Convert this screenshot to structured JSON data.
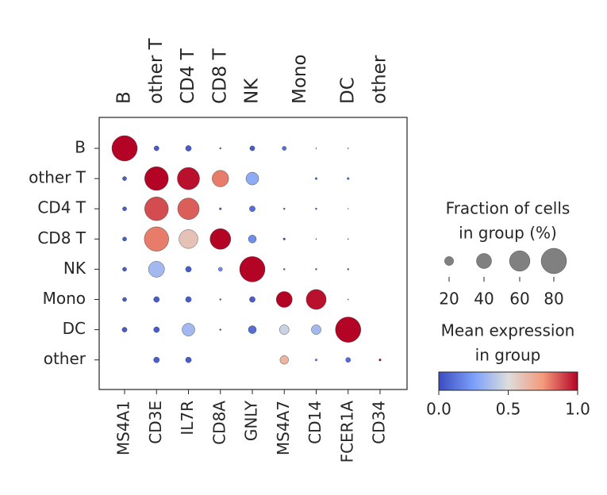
{
  "chart_data": {
    "type": "dotplot",
    "groups": [
      "B",
      "other T",
      "CD4 T",
      "CD8 T",
      "NK",
      "Mono",
      "DC",
      "other"
    ],
    "genes": [
      "MS4A1",
      "CD3E",
      "IL7R",
      "CD8A",
      "GNLY",
      "MS4A7",
      "CD14",
      "FCER1A",
      "CD34"
    ],
    "var_group_labels": [
      "B",
      "other T",
      "CD4 T",
      "CD8 T",
      "NK",
      "Mono",
      "DC",
      "other"
    ],
    "var_group_positions": [
      [
        0,
        0
      ],
      [
        1,
        1
      ],
      [
        2,
        2
      ],
      [
        3,
        3
      ],
      [
        4,
        4
      ],
      [
        5,
        6
      ],
      [
        7,
        7
      ],
      [
        8,
        8
      ]
    ],
    "fraction": [
      [
        80,
        9,
        11,
        2,
        9,
        7,
        1,
        1,
        null
      ],
      [
        7,
        73,
        67,
        45,
        32,
        null,
        3,
        3,
        null
      ],
      [
        7,
        73,
        64,
        3,
        11,
        2,
        2,
        1,
        null
      ],
      [
        7,
        76,
        54,
        61,
        17,
        3,
        1,
        1,
        null
      ],
      [
        7,
        43,
        11,
        7,
        80,
        2,
        2,
        2,
        null
      ],
      [
        7,
        11,
        11,
        2,
        11,
        43,
        58,
        1,
        null
      ],
      [
        9,
        11,
        32,
        2,
        17,
        22,
        22,
        80,
        null
      ],
      [
        null,
        11,
        11,
        null,
        null,
        19,
        3,
        9,
        3
      ]
    ],
    "expression": [
      [
        1.0,
        0.05,
        0.05,
        0.05,
        0.05,
        0.1,
        0.05,
        0.05,
        null
      ],
      [
        0.05,
        1.0,
        0.98,
        0.8,
        0.3,
        null,
        0.1,
        0.1,
        null
      ],
      [
        0.05,
        0.88,
        0.85,
        0.05,
        0.1,
        0.05,
        0.05,
        0.7,
        null
      ],
      [
        0.05,
        0.8,
        0.6,
        1.0,
        0.2,
        0.05,
        0.05,
        0.05,
        null
      ],
      [
        0.05,
        0.35,
        0.05,
        0.2,
        1.0,
        0.05,
        0.05,
        0.05,
        null
      ],
      [
        0.05,
        0.05,
        0.05,
        0.05,
        0.05,
        1.0,
        0.98,
        0.05,
        null
      ],
      [
        0.05,
        0.05,
        0.35,
        0.05,
        0.1,
        0.45,
        0.35,
        1.0,
        null
      ],
      [
        null,
        0.05,
        0.05,
        null,
        null,
        0.65,
        0.2,
        0.1,
        1.0
      ]
    ],
    "size_legend": {
      "title": [
        "Fraction of cells",
        "in group (%)"
      ],
      "ticks": [
        20,
        40,
        60,
        80
      ]
    },
    "colorbar": {
      "title": [
        "Mean expression",
        "in group"
      ],
      "colormap": "coolwarm",
      "lim": [
        0,
        1
      ],
      "ticks": [
        {
          "value": 0,
          "label": "0.0"
        },
        {
          "value": 0.5,
          "label": "0.5"
        },
        {
          "value": 1,
          "label": "1.0"
        }
      ]
    }
  }
}
